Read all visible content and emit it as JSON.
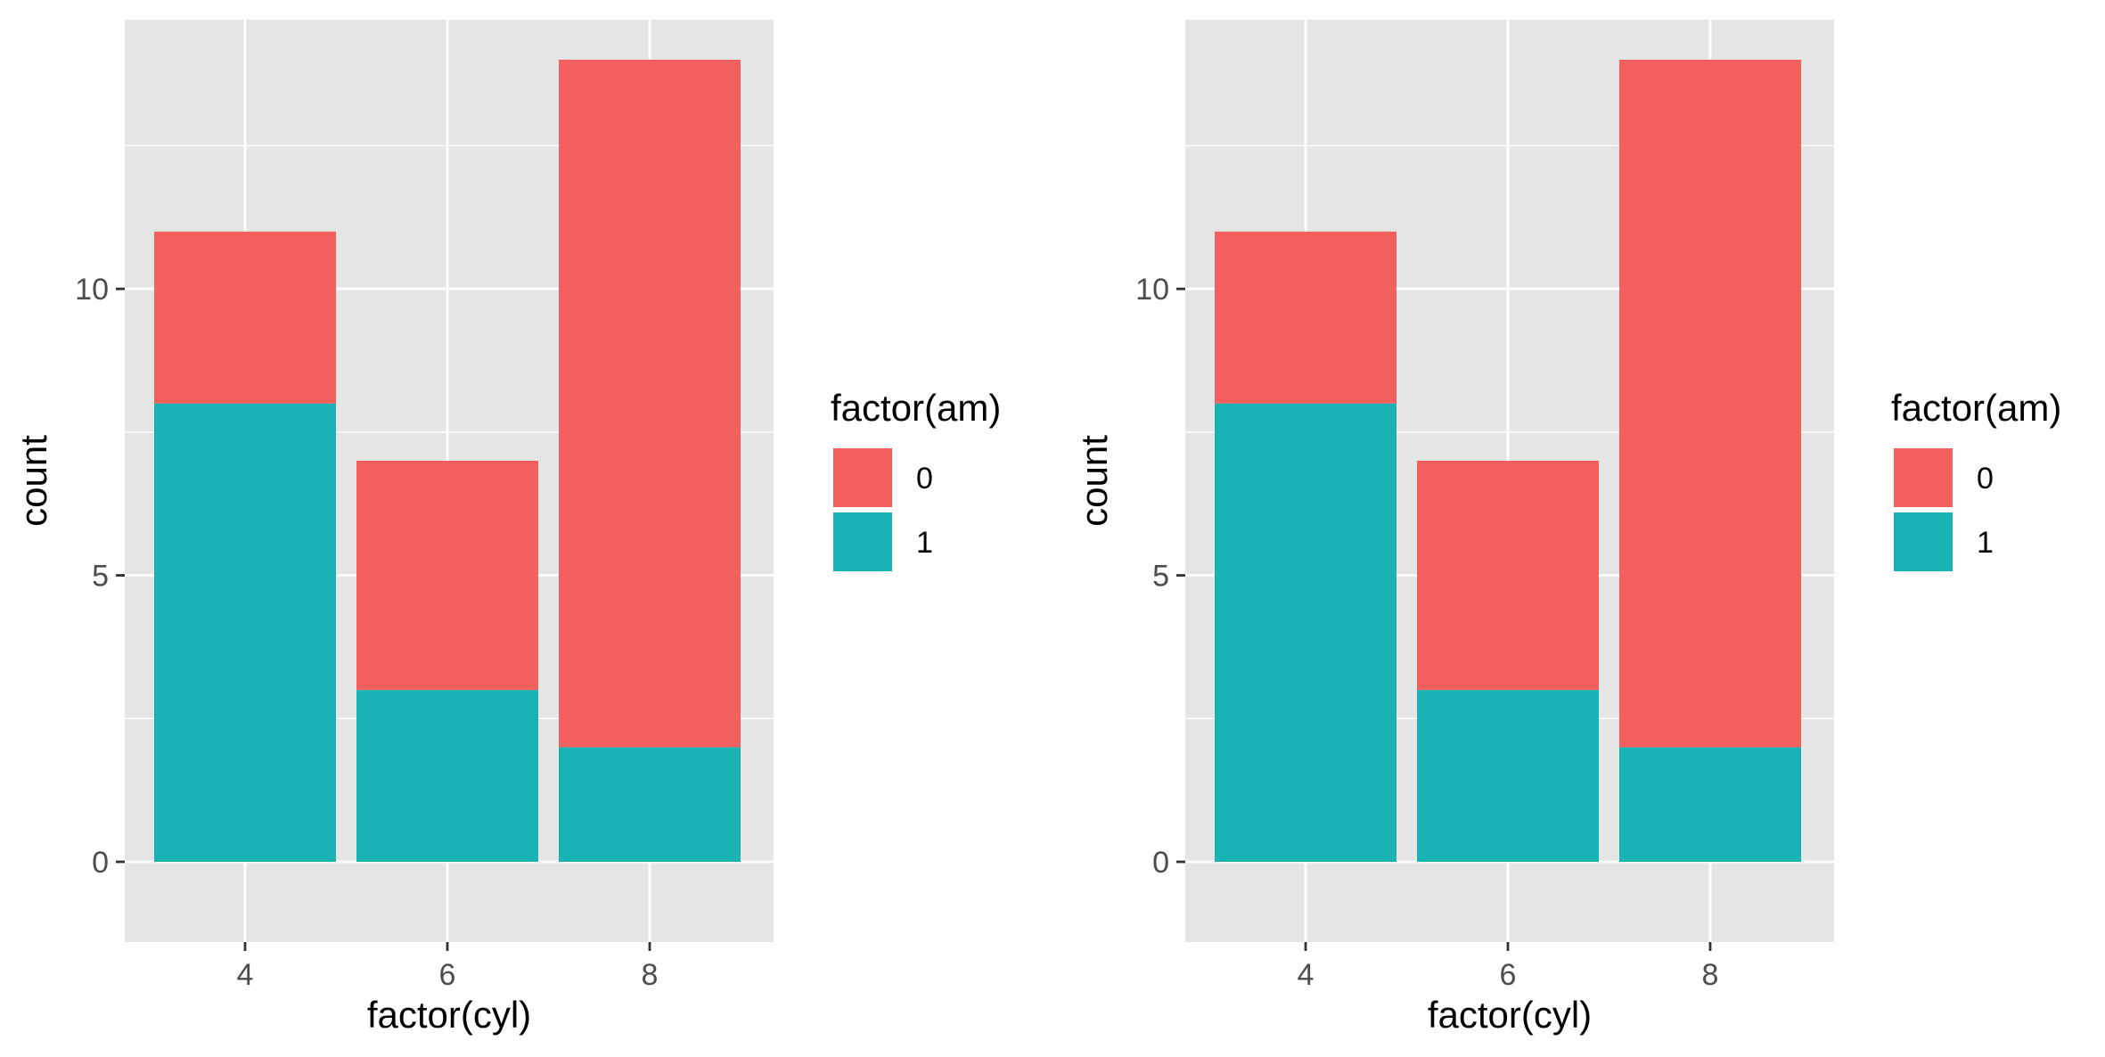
{
  "colors": {
    "panel_bg": "#e5e5e5",
    "grid": "#ffffff",
    "tick_text": "#4d4d4d",
    "title_text": "#000000",
    "series_0": "#f3605d",
    "series_1": "#19b3b6"
  },
  "chart_data": [
    {
      "type": "bar",
      "stacked": true,
      "xlabel": "factor(cyl)",
      "ylabel": "count",
      "categories": [
        "4",
        "6",
        "8"
      ],
      "ylim": [
        -1.4,
        14.7
      ],
      "yticks": [
        0,
        5,
        10
      ],
      "ytick_labels": [
        "0",
        "5",
        "10"
      ],
      "grid": true,
      "legend": {
        "title": "factor(am)",
        "position": "right"
      },
      "series": [
        {
          "name": "0",
          "color": "#f3605d",
          "values": [
            3,
            4,
            12
          ]
        },
        {
          "name": "1",
          "color": "#19b3b6",
          "values": [
            8,
            3,
            2
          ]
        }
      ]
    },
    {
      "type": "bar",
      "stacked": true,
      "xlabel": "factor(cyl)",
      "ylabel": "count",
      "categories": [
        "4",
        "6",
        "8"
      ],
      "ylim": [
        -1.4,
        14.7
      ],
      "yticks": [
        0,
        5,
        10
      ],
      "ytick_labels": [
        "0",
        "5",
        "10"
      ],
      "grid": true,
      "legend": {
        "title": "factor(am)",
        "position": "right"
      },
      "series": [
        {
          "name": "0",
          "color": "#f3605d",
          "values": [
            3,
            4,
            12
          ]
        },
        {
          "name": "1",
          "color": "#19b3b6",
          "values": [
            8,
            3,
            2
          ]
        }
      ]
    }
  ]
}
